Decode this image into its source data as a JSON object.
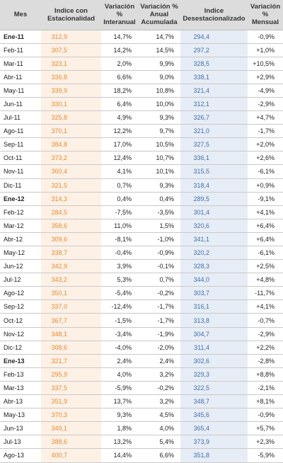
{
  "table": {
    "headers": {
      "mes": "Mes",
      "estacional": "Indice con Estacionalidad",
      "interanual": "Variación % Interanual",
      "anual": "Variación % Anual Acumulada",
      "desestacionalizado": "Indice Desestacionalizado",
      "mensual": "Variación % Mensual"
    },
    "rows": [
      {
        "mes": "Ene-11",
        "bold": true,
        "est": "312,9",
        "int": "14,7%",
        "anu": "14,7%",
        "des": "294,4",
        "men": "-0,9%"
      },
      {
        "mes": "Feb-11",
        "est": "307,5",
        "int": "14,2%",
        "anu": "14,5%",
        "des": "297,2",
        "men": "+1,0%"
      },
      {
        "mes": "Mar-11",
        "est": "323,1",
        "int": "2,0%",
        "anu": "9,9%",
        "des": "328,5",
        "men": "+10,5%"
      },
      {
        "mes": "Abr-11",
        "est": "336,8",
        "int": "6,6%",
        "anu": "9,0%",
        "des": "338,1",
        "men": "+2,9%"
      },
      {
        "mes": "May-11",
        "est": "339,9",
        "int": "18,2%",
        "anu": "10,8%",
        "des": "321,4",
        "men": "-4,9%"
      },
      {
        "mes": "Jun-11",
        "est": "330,1",
        "int": "6,4%",
        "anu": "10,0%",
        "des": "312,1",
        "men": "-2,9%"
      },
      {
        "mes": "Jul-11",
        "est": "325,8",
        "int": "4,9%",
        "anu": "9,3%",
        "des": "326,7",
        "men": "+4,7%"
      },
      {
        "mes": "Ago-11",
        "est": "370,1",
        "int": "12,2%",
        "anu": "9,7%",
        "des": "321,0",
        "men": "-1,7%"
      },
      {
        "mes": "Sep-11",
        "est": "384,8",
        "int": "17,0%",
        "anu": "10,5%",
        "des": "327,5",
        "men": "+2,0%"
      },
      {
        "mes": "Oct-11",
        "est": "373,2",
        "int": "12,4%",
        "anu": "10,7%",
        "des": "336,1",
        "men": "+2,6%"
      },
      {
        "mes": "Nov-11",
        "est": "360,4",
        "int": "4,1%",
        "anu": "10,1%",
        "des": "315,5",
        "men": "-6,1%"
      },
      {
        "mes": "Dic-11",
        "est": "321,5",
        "int": "0,7%",
        "anu": "9,3%",
        "des": "318,4",
        "men": "+0,9%"
      },
      {
        "mes": "Ene-12",
        "bold": true,
        "est": "314,3",
        "int": "0,4%",
        "anu": "0,4%",
        "des": "289,5",
        "men": "-9,1%"
      },
      {
        "mes": "Feb-12",
        "est": "284,5",
        "int": "-7,5%",
        "anu": "-3,5%",
        "des": "301,4",
        "men": "+4,1%"
      },
      {
        "mes": "Mar-12",
        "est": "358,6",
        "int": "11,0%",
        "anu": "1,5%",
        "des": "320,6",
        "men": "+6,4%"
      },
      {
        "mes": "Abr-12",
        "est": "309,6",
        "int": "-8,1%",
        "anu": "-1,0%",
        "des": "341,1",
        "men": "+6,4%"
      },
      {
        "mes": "May-12",
        "est": "338,7",
        "int": "-0,4%",
        "anu": "-0,9%",
        "des": "320,2",
        "men": "-6,1%"
      },
      {
        "mes": "Jun-12",
        "est": "342,9",
        "int": "3,9%",
        "anu": "-0,1%",
        "des": "328,3",
        "men": "+2,5%"
      },
      {
        "mes": "Jul-12",
        "est": "343,2",
        "int": "5,3%",
        "anu": "0,7%",
        "des": "344,0",
        "men": "+4,8%"
      },
      {
        "mes": "Ago-12",
        "est": "350,1",
        "int": "-5,4%",
        "anu": "-0,2%",
        "des": "303,7",
        "men": "-11,7%"
      },
      {
        "mes": "Sep-12",
        "est": "337,0",
        "int": "-12,4%",
        "anu": "-1,7%",
        "des": "316,1",
        "men": "+4,1%"
      },
      {
        "mes": "Oct-12",
        "est": "367,7",
        "int": "-1,5%",
        "anu": "-1,7%",
        "des": "313,8",
        "men": "-0,7%"
      },
      {
        "mes": "Nov-12",
        "est": "348,1",
        "int": "-3,4%",
        "anu": "-1,9%",
        "des": "304,7",
        "men": "-2,9%"
      },
      {
        "mes": "Dic-12",
        "est": "308,6",
        "int": "-4,0%",
        "anu": "-2,0%",
        "des": "311,4",
        "men": "+2,2%"
      },
      {
        "mes": "Ene-13",
        "bold": true,
        "est": "321,7",
        "int": "2,4%",
        "anu": "2,4%",
        "des": "302,6",
        "men": "-2,8%"
      },
      {
        "mes": "Feb-13",
        "est": "295,9",
        "int": "4,0%",
        "anu": "3,2%",
        "des": "329,3",
        "men": "+8,8%"
      },
      {
        "mes": "Mar-13",
        "est": "337,5",
        "int": "-5,9%",
        "anu": "-0,2%",
        "des": "322,5",
        "men": "-2,1%"
      },
      {
        "mes": "Abr-13",
        "est": "351,9",
        "int": "13,7%",
        "anu": "3,2%",
        "des": "348,7",
        "men": "+8,1%"
      },
      {
        "mes": "May-13",
        "est": "370,3",
        "int": "9,3%",
        "anu": "4,5%",
        "des": "345,6",
        "men": "-0,9%"
      },
      {
        "mes": "Jun-13",
        "est": "349,1",
        "int": "1,8%",
        "anu": "4,0%",
        "des": "365,4",
        "men": "+5,7%"
      },
      {
        "mes": "Jul-13",
        "est": "388,6",
        "int": "13,2%",
        "anu": "5,4%",
        "des": "373,9",
        "men": "+2,3%"
      },
      {
        "mes": "Ago-13",
        "est": "400,7",
        "int": "14,4%",
        "anu": "6,6%",
        "des": "351,8",
        "men": "-5,9%"
      }
    ]
  }
}
